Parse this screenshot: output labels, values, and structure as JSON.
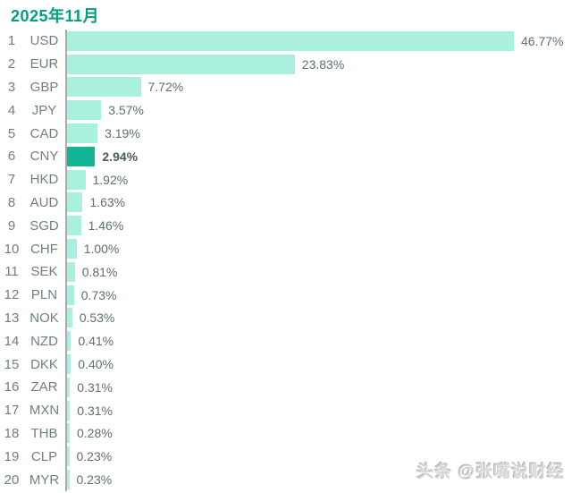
{
  "header": {
    "title": "2025年11月"
  },
  "watermark": {
    "text": "头条 @张嘴说财经"
  },
  "colors": {
    "title": "#00a07a",
    "bar": "#aaf0df",
    "bar_highlight": "#12b493",
    "axis": "#a3adad",
    "label": "#70807f",
    "value": "#5f6e6e",
    "value_highlight": "#4b5a5a"
  },
  "chart_data": {
    "type": "bar",
    "orientation": "horizontal",
    "title": "2025年11月",
    "xlim": [
      0,
      46.77
    ],
    "grid": false,
    "legend": false,
    "highlight_category": "CNY",
    "ranks": [
      1,
      2,
      3,
      4,
      5,
      6,
      7,
      8,
      9,
      10,
      11,
      12,
      13,
      14,
      15,
      16,
      17,
      18,
      19,
      20
    ],
    "categories": [
      "USD",
      "EUR",
      "GBP",
      "JPY",
      "CAD",
      "CNY",
      "HKD",
      "AUD",
      "SGD",
      "CHF",
      "SEK",
      "PLN",
      "NOK",
      "NZD",
      "DKK",
      "ZAR",
      "MXN",
      "THB",
      "CLP",
      "MYR"
    ],
    "values": [
      46.77,
      23.83,
      7.72,
      3.57,
      3.19,
      2.94,
      1.92,
      1.63,
      1.46,
      1.0,
      0.81,
      0.73,
      0.53,
      0.41,
      0.4,
      0.31,
      0.31,
      0.28,
      0.23,
      0.23
    ],
    "value_labels": [
      "46.77%",
      "23.83%",
      "7.72%",
      "3.57%",
      "3.19%",
      "2.94%",
      "1.92%",
      "1.63%",
      "1.46%",
      "1.00%",
      "0.81%",
      "0.73%",
      "0.53%",
      "0.41%",
      "0.40%",
      "0.31%",
      "0.31%",
      "0.28%",
      "0.23%",
      "0.23%"
    ]
  }
}
